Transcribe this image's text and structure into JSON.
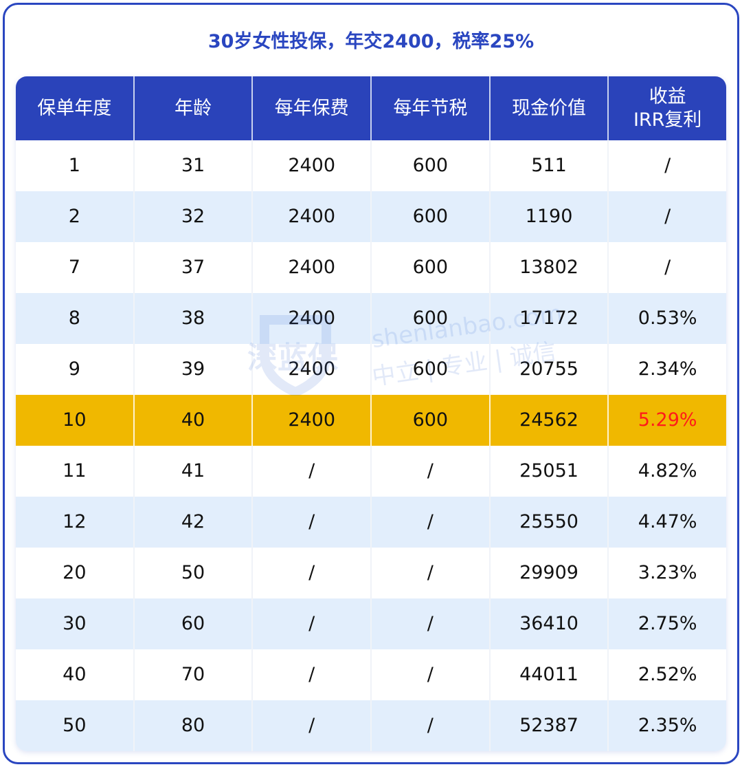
{
  "title": "30岁女性投保，年交2400，税率25%",
  "columns": [
    "保单年度",
    "年龄",
    "每年保费",
    "每年节税",
    "现金价值",
    "收益\nIRR复利"
  ],
  "rows": [
    [
      "1",
      "31",
      "2400",
      "600",
      "511",
      "/"
    ],
    [
      "2",
      "32",
      "2400",
      "600",
      "1190",
      "/"
    ],
    [
      "7",
      "37",
      "2400",
      "600",
      "13802",
      "/"
    ],
    [
      "8",
      "38",
      "2400",
      "600",
      "17172",
      "0.53%"
    ],
    [
      "9",
      "39",
      "2400",
      "600",
      "20755",
      "2.34%"
    ],
    [
      "10",
      "40",
      "2400",
      "600",
      "24562",
      "5.29%"
    ],
    [
      "11",
      "41",
      "/",
      "/",
      "25051",
      "4.82%"
    ],
    [
      "12",
      "42",
      "/",
      "/",
      "25550",
      "4.47%"
    ],
    [
      "20",
      "50",
      "/",
      "/",
      "29909",
      "3.23%"
    ],
    [
      "30",
      "60",
      "/",
      "/",
      "36410",
      "2.75%"
    ],
    [
      "40",
      "70",
      "/",
      "/",
      "44011",
      "2.52%"
    ],
    [
      "50",
      "80",
      "/",
      "/",
      "52387",
      "2.35%"
    ]
  ],
  "highlight_row": 5,
  "colors": {
    "brand": "#2a46c0",
    "highlight": "#f0b800",
    "highlight_text": "#ff1a1a",
    "stripe": "#e2eefc"
  },
  "watermark": {
    "logo": "深蓝保",
    "site": "shenlanbao.com",
    "slogan": "中立 | 专业 | 诚信"
  }
}
